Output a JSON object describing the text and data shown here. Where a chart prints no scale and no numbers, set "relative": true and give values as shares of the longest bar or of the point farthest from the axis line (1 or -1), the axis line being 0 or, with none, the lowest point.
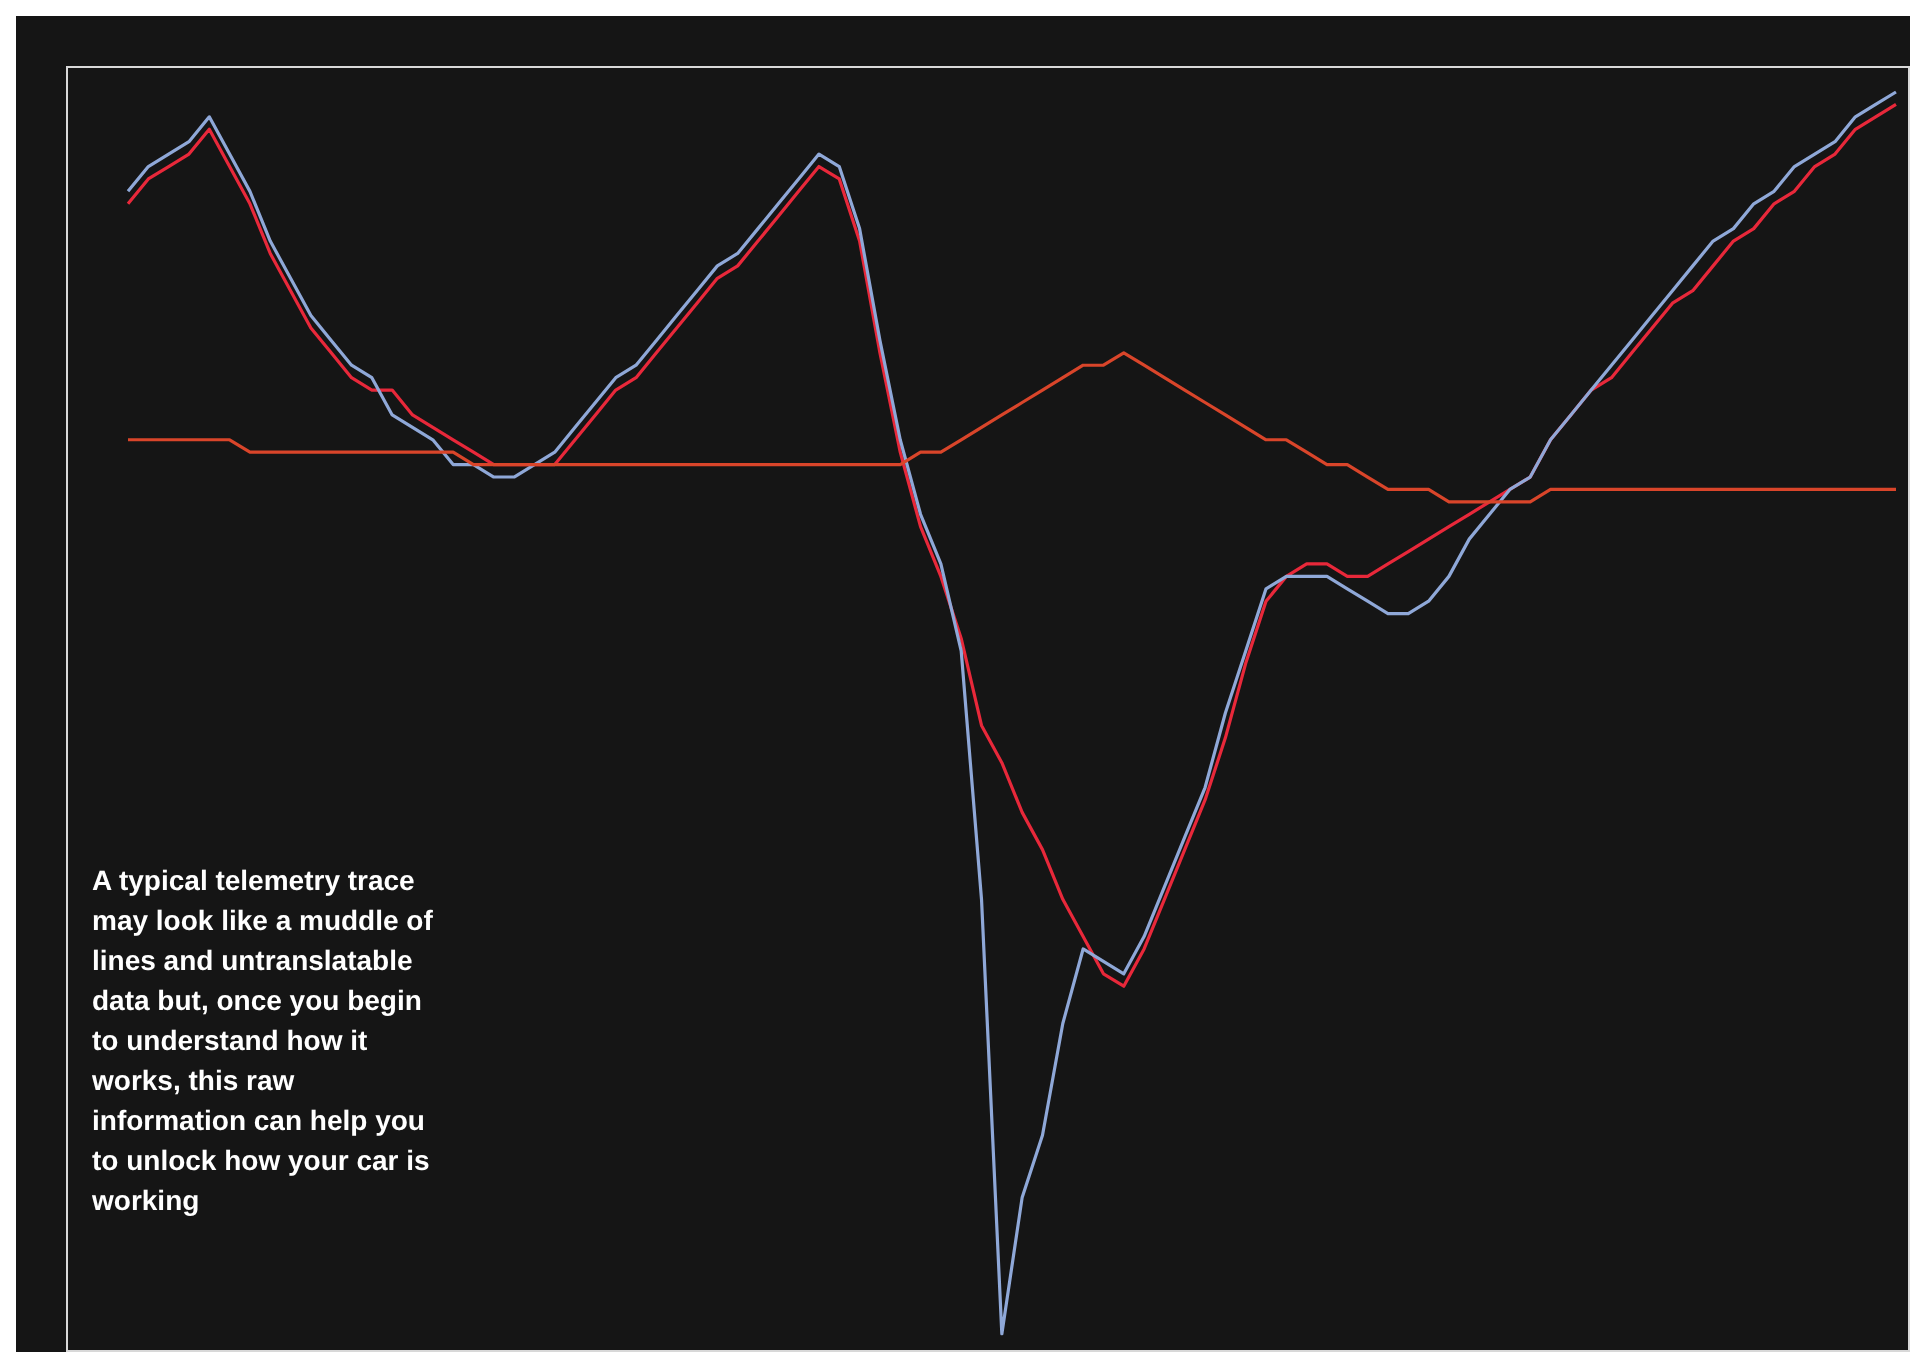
{
  "chart_data": {
    "type": "line",
    "relative": true,
    "tick_labels": false,
    "legend": false,
    "marker": "none",
    "line_style": "solid",
    "categories": [
      null,
      null,
      null,
      null,
      null,
      null,
      null,
      null,
      null,
      null,
      null,
      null,
      null,
      null,
      null,
      null,
      null,
      null,
      null,
      null,
      null,
      null,
      null,
      null,
      null,
      null,
      null,
      null,
      null,
      null,
      null,
      null,
      null,
      null,
      null,
      null,
      null,
      null,
      null,
      null,
      null,
      null,
      null,
      null,
      null,
      null,
      null,
      null,
      null,
      null,
      null,
      null,
      null,
      null,
      null,
      null,
      null,
      null,
      null,
      null,
      null,
      null,
      null,
      null,
      null,
      null,
      null,
      null,
      null,
      null,
      null,
      null,
      null,
      null,
      null,
      null,
      null,
      null,
      null,
      null,
      null,
      null,
      null,
      null,
      null,
      null,
      null,
      null
    ],
    "series": [
      {
        "color": "#d9452a",
        "values": [
          0.72,
          0.72,
          0.72,
          0.72,
          0.72,
          0.72,
          0.71,
          0.71,
          0.71,
          0.71,
          0.71,
          0.71,
          0.71,
          0.71,
          0.71,
          0.71,
          0.71,
          0.7,
          0.7,
          0.7,
          0.7,
          0.7,
          0.7,
          0.7,
          0.7,
          0.7,
          0.7,
          0.7,
          0.7,
          0.7,
          0.7,
          0.7,
          0.7,
          0.7,
          0.7,
          0.7,
          0.7,
          0.7,
          0.7,
          0.71,
          0.71,
          0.72,
          0.73,
          0.74,
          0.75,
          0.76,
          0.77,
          0.78,
          0.78,
          0.79,
          0.78,
          0.77,
          0.76,
          0.75,
          0.74,
          0.73,
          0.72,
          0.72,
          0.71,
          0.7,
          0.7,
          0.69,
          0.68,
          0.68,
          0.68,
          0.67,
          0.67,
          0.67,
          0.67,
          0.67,
          0.68,
          0.68,
          0.68,
          0.68,
          0.68,
          0.68,
          0.68,
          0.68,
          0.68,
          0.68,
          0.68,
          0.68,
          0.68,
          0.68,
          0.68,
          0.68,
          0.68,
          0.68
        ]
      },
      {
        "color": "#8fa8d8",
        "values": [
          0.92,
          0.94,
          0.95,
          0.96,
          0.98,
          0.95,
          0.92,
          0.88,
          0.85,
          0.82,
          0.8,
          0.78,
          0.77,
          0.74,
          0.73,
          0.72,
          0.7,
          0.7,
          0.69,
          0.69,
          0.7,
          0.71,
          0.73,
          0.75,
          0.77,
          0.78,
          0.8,
          0.82,
          0.84,
          0.86,
          0.87,
          0.89,
          0.91,
          0.93,
          0.95,
          0.94,
          0.89,
          0.8,
          0.72,
          0.66,
          0.62,
          0.55,
          0.35,
          0,
          0.11,
          0.16,
          0.25,
          0.31,
          0.3,
          0.29,
          0.32,
          0.36,
          0.4,
          0.44,
          0.5,
          0.55,
          0.6,
          0.61,
          0.61,
          0.61,
          0.6,
          0.59,
          0.58,
          0.58,
          0.59,
          0.61,
          0.64,
          0.66,
          0.68,
          0.69,
          0.72,
          0.74,
          0.76,
          0.78,
          0.8,
          0.82,
          0.84,
          0.86,
          0.88,
          0.89,
          0.91,
          0.92,
          0.94,
          0.95,
          0.96,
          0.98,
          0.99,
          1.0
        ]
      },
      {
        "color": "#e8283a",
        "values": [
          0.91,
          0.93,
          0.94,
          0.95,
          0.97,
          0.94,
          0.91,
          0.87,
          0.84,
          0.81,
          0.79,
          0.77,
          0.76,
          0.76,
          0.74,
          0.73,
          0.72,
          0.71,
          0.7,
          0.7,
          0.7,
          0.7,
          0.72,
          0.74,
          0.76,
          0.77,
          0.79,
          0.81,
          0.83,
          0.85,
          0.86,
          0.88,
          0.9,
          0.92,
          0.94,
          0.93,
          0.88,
          0.79,
          0.71,
          0.65,
          0.61,
          0.56,
          0.49,
          0.46,
          0.42,
          0.39,
          0.35,
          0.32,
          0.29,
          0.28,
          0.31,
          0.35,
          0.39,
          0.43,
          0.48,
          0.54,
          0.59,
          0.61,
          0.62,
          0.62,
          0.61,
          0.61,
          0.62,
          0.63,
          0.64,
          0.65,
          0.66,
          0.67,
          0.68,
          0.69,
          0.72,
          0.74,
          0.76,
          0.77,
          0.79,
          0.81,
          0.83,
          0.84,
          0.86,
          0.88,
          0.89,
          0.91,
          0.92,
          0.94,
          0.95,
          0.97,
          0.98,
          0.99
        ]
      }
    ],
    "annotations": [
      "A typical telemetry trace may look like a muddle of lines and untranslatable data but, once you begin to understand how it works, this raw information can help you to unlock how your car is working"
    ]
  }
}
